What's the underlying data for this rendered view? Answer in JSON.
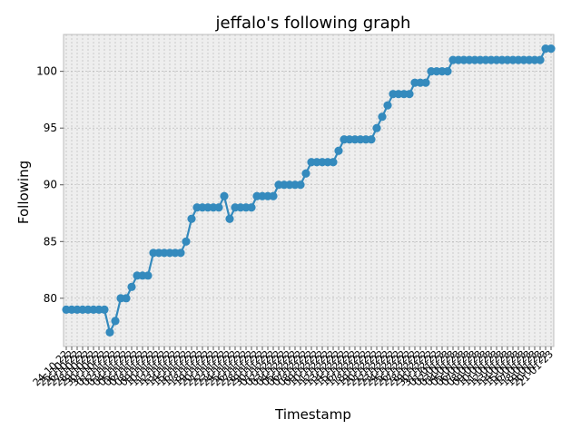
{
  "chart_data": {
    "type": "line",
    "title": "jeffalo's following graph",
    "xlabel": "Timestamp",
    "ylabel": "Following",
    "ylim": [
      75.75,
      103.25
    ],
    "yticks": [
      80,
      85,
      90,
      95,
      100
    ],
    "grid": true,
    "colors": {
      "series": "#348ABD",
      "plot_background": "#EEEEEE",
      "grid": "#B2B2B2",
      "text": "#000000"
    },
    "x_tick_labels": [
      "24-10-22",
      "25-10-22",
      "26-10-22",
      "27-10-22",
      "28-10-22",
      "29-10-22",
      "30-10-22",
      "31-10-22",
      "01-11-22",
      "02-11-22",
      "03-11-22",
      "04-11-22",
      "05-11-22",
      "06-11-22",
      "07-11-22",
      "08-11-22",
      "09-11-22",
      "10-11-22",
      "11-11-22",
      "12-11-22",
      "13-11-22",
      "14-11-22",
      "15-11-22",
      "16-11-22",
      "17-11-22",
      "18-11-22",
      "19-11-22",
      "20-11-22",
      "21-11-22",
      "22-11-22",
      "23-11-22",
      "24-11-22",
      "25-11-22",
      "26-11-22",
      "27-11-22",
      "28-11-22",
      "29-11-22",
      "30-11-22",
      "01-12-22",
      "02-12-22",
      "03-12-22",
      "04-12-22",
      "05-12-22",
      "06-12-22",
      "07-12-22",
      "08-12-22",
      "09-12-22",
      "10-12-22",
      "11-12-22",
      "12-12-22",
      "13-12-22",
      "14-12-22",
      "15-12-22",
      "16-12-22",
      "17-12-22",
      "18-12-22",
      "19-12-22",
      "20-12-22",
      "21-12-22",
      "22-12-22",
      "23-12-22",
      "24-12-22",
      "25-12-22",
      "26-12-22",
      "27-12-22",
      "28-12-22",
      "29-12-22",
      "30-12-22",
      "31-12-22",
      "01-01-23",
      "02-01-23",
      "03-01-23",
      "04-01-23",
      "05-01-23",
      "06-01-23",
      "07-01-23",
      "08-01-23",
      "09-01-23",
      "10-01-23",
      "11-01-23",
      "12-01-23",
      "13-01-23",
      "14-01-23",
      "15-01-23",
      "16-01-23",
      "17-01-23",
      "18-01-23",
      "19-01-23",
      "20-01-23",
      "21-01-23"
    ],
    "series": [
      {
        "values": [
          79,
          79,
          79,
          79,
          79,
          79,
          79,
          79,
          77,
          78,
          80,
          80,
          81,
          82,
          82,
          82,
          84,
          84,
          84,
          84,
          84,
          84,
          85,
          87,
          88,
          88,
          88,
          88,
          88,
          89,
          87,
          88,
          88,
          88,
          88,
          89,
          89,
          89,
          89,
          90,
          90,
          90,
          90,
          90,
          91,
          92,
          92,
          92,
          92,
          92,
          93,
          94,
          94,
          94,
          94,
          94,
          94,
          95,
          96,
          97,
          98,
          98,
          98,
          98,
          99,
          99,
          99,
          100,
          100,
          100,
          100,
          101,
          101,
          101,
          101,
          101,
          101,
          101,
          101,
          101,
          101,
          101,
          101,
          101,
          101,
          101,
          101,
          101,
          102,
          102
        ]
      }
    ]
  }
}
